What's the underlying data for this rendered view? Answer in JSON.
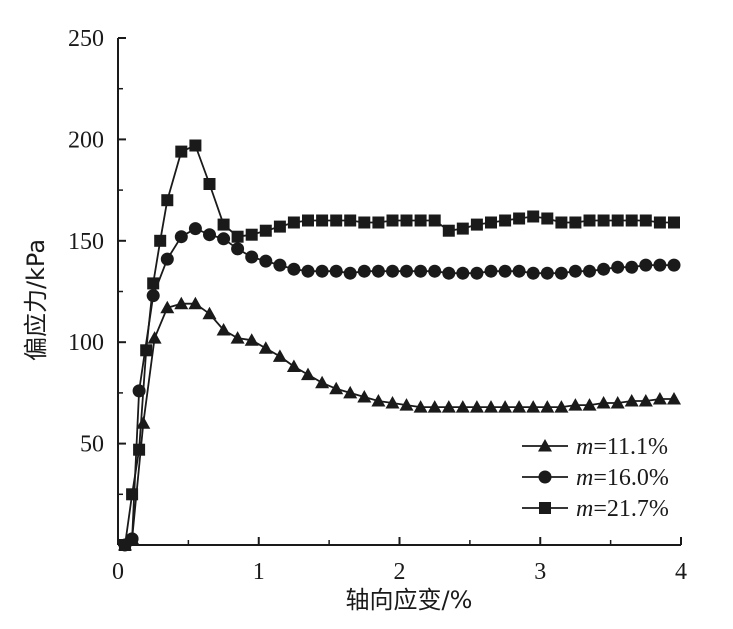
{
  "chart_data": {
    "type": "line",
    "xlabel": "轴向应变/%",
    "ylabel": "偏应力/kPa",
    "xlim": [
      0,
      4
    ],
    "ylim": [
      0,
      250
    ],
    "xticks": [
      0,
      1,
      2,
      3,
      4
    ],
    "yticks": [
      50,
      100,
      150,
      200,
      250
    ],
    "grid": false,
    "legend_position": "lower-right",
    "series": [
      {
        "name": "m=11.1%",
        "legend_var": "m",
        "legend_value": "=11.1%",
        "marker": "triangle",
        "x": [
          0.05,
          0.1,
          0.18,
          0.26,
          0.35,
          0.45,
          0.55,
          0.65,
          0.75,
          0.85,
          0.95,
          1.05,
          1.15,
          1.25,
          1.35,
          1.45,
          1.55,
          1.65,
          1.75,
          1.85,
          1.95,
          2.05,
          2.15,
          2.25,
          2.35,
          2.45,
          2.55,
          2.65,
          2.75,
          2.85,
          2.95,
          3.05,
          3.15,
          3.25,
          3.35,
          3.45,
          3.55,
          3.65,
          3.75,
          3.85,
          3.95
        ],
        "y": [
          0,
          3,
          60,
          102,
          117,
          119,
          119,
          114,
          106,
          102,
          101,
          97,
          93,
          88,
          84,
          80,
          77,
          75,
          73,
          71,
          70,
          69,
          68,
          68,
          68,
          68,
          68,
          68,
          68,
          68,
          68,
          68,
          68,
          69,
          69,
          70,
          70,
          71,
          71,
          72,
          72
        ]
      },
      {
        "name": "m=16.0%",
        "legend_var": "m",
        "legend_value": "=16.0%",
        "marker": "circle",
        "x": [
          0.05,
          0.1,
          0.15,
          0.25,
          0.35,
          0.45,
          0.55,
          0.65,
          0.75,
          0.85,
          0.95,
          1.05,
          1.15,
          1.25,
          1.35,
          1.45,
          1.55,
          1.65,
          1.75,
          1.85,
          1.95,
          2.05,
          2.15,
          2.25,
          2.35,
          2.45,
          2.55,
          2.65,
          2.75,
          2.85,
          2.95,
          3.05,
          3.15,
          3.25,
          3.35,
          3.45,
          3.55,
          3.65,
          3.75,
          3.85,
          3.95
        ],
        "y": [
          0,
          3,
          76,
          123,
          141,
          152,
          156,
          153,
          151,
          146,
          142,
          140,
          138,
          136,
          135,
          135,
          135,
          134,
          135,
          135,
          135,
          135,
          135,
          135,
          134,
          134,
          134,
          135,
          135,
          135,
          134,
          134,
          134,
          135,
          135,
          136,
          137,
          137,
          138,
          138,
          138
        ]
      },
      {
        "name": "m=21.7%",
        "legend_var": "m",
        "legend_value": "=21.7%",
        "marker": "square",
        "x": [
          0.05,
          0.1,
          0.15,
          0.2,
          0.25,
          0.3,
          0.35,
          0.45,
          0.55,
          0.65,
          0.75,
          0.85,
          0.95,
          1.05,
          1.15,
          1.25,
          1.35,
          1.45,
          1.55,
          1.65,
          1.75,
          1.85,
          1.95,
          2.05,
          2.15,
          2.25,
          2.35,
          2.45,
          2.55,
          2.65,
          2.75,
          2.85,
          2.95,
          3.05,
          3.15,
          3.25,
          3.35,
          3.45,
          3.55,
          3.65,
          3.75,
          3.85,
          3.95
        ],
        "y": [
          0,
          25,
          47,
          96,
          129,
          150,
          170,
          194,
          197,
          178,
          158,
          152,
          153,
          155,
          157,
          159,
          160,
          160,
          160,
          160,
          159,
          159,
          160,
          160,
          160,
          160,
          155,
          156,
          158,
          159,
          160,
          161,
          162,
          161,
          159,
          159,
          160,
          160,
          160,
          160,
          160,
          159,
          159
        ]
      }
    ]
  }
}
